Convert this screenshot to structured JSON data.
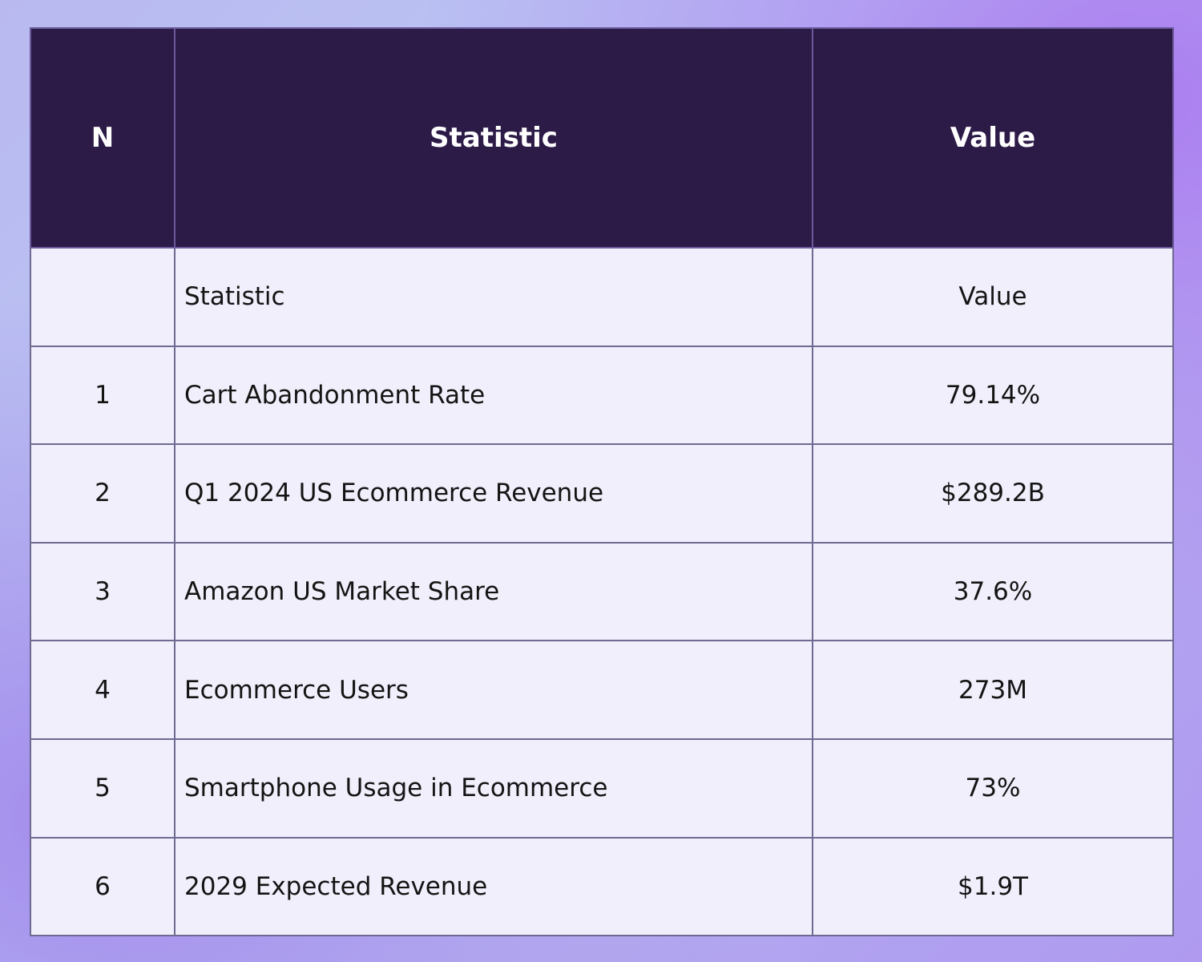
{
  "table": {
    "headers": {
      "n": "N",
      "statistic": "Statistic",
      "value": "Value"
    },
    "rows": [
      {
        "n": "",
        "statistic": "Statistic",
        "value": "Value"
      },
      {
        "n": "1",
        "statistic": "Cart Abandonment Rate",
        "value": "79.14%"
      },
      {
        "n": "2",
        "statistic": "Q1 2024 US Ecommerce Revenue",
        "value": "$289.2B"
      },
      {
        "n": "3",
        "statistic": "Amazon US Market Share",
        "value": "37.6%"
      },
      {
        "n": "4",
        "statistic": "Ecommerce Users",
        "value": "273M"
      },
      {
        "n": "5",
        "statistic": "Smartphone Usage in Ecommerce",
        "value": "73%"
      },
      {
        "n": "6",
        "statistic": "2029 Expected Revenue",
        "value": "$1.9T"
      }
    ]
  },
  "colors": {
    "header_background": "#2c1a47",
    "header_text": "#ffffff",
    "cell_background": "#f0effb",
    "cell_text": "#141414",
    "border": "#6e6a92"
  }
}
